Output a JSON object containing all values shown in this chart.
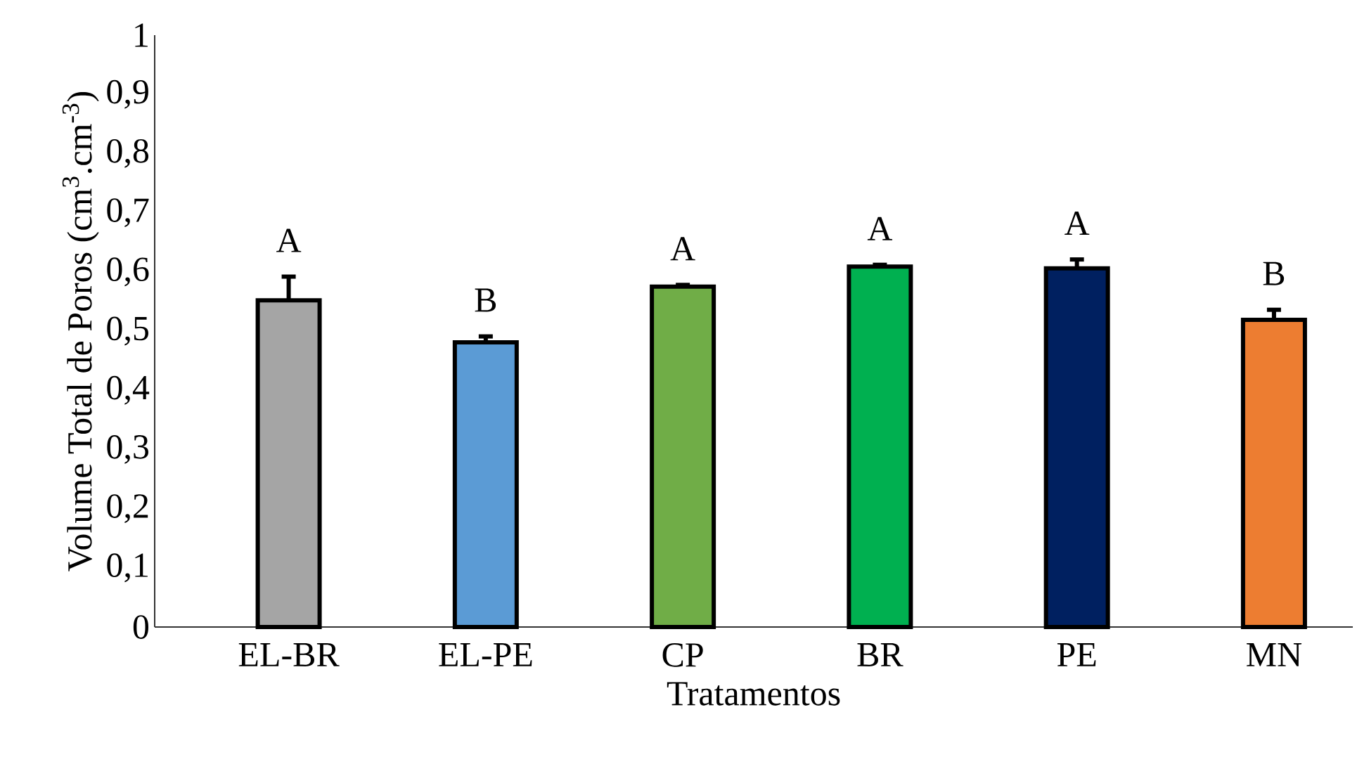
{
  "chart_data": {
    "type": "bar",
    "xlabel": "Tratamentos",
    "ylabel": "Volume Total de Poros (cm$^{3}$.cm$^{-3}$)",
    "categories": [
      "EL-BR",
      "EL-PE",
      "CP",
      "BR",
      "PE",
      "MN"
    ],
    "values": [
      0.552,
      0.481,
      0.575,
      0.609,
      0.606,
      0.519
    ],
    "errors": [
      0.04,
      0.01,
      0.003,
      0.003,
      0.015,
      0.017
    ],
    "colors": [
      "#a5a5a5",
      "#5b9bd5",
      "#70ad47",
      "#00b050",
      "#002060",
      "#ed7d31"
    ],
    "ylim": [
      0,
      1
    ],
    "yticks": [
      {
        "value": 0,
        "label": "0"
      },
      {
        "value": 0.1,
        "label": "0,1"
      },
      {
        "value": 0.2,
        "label": "0,2"
      },
      {
        "value": 0.3,
        "label": "0,3"
      },
      {
        "value": 0.4,
        "label": "0,4"
      },
      {
        "value": 0.5,
        "label": "0,5"
      },
      {
        "value": 0.6,
        "label": "0,6"
      },
      {
        "value": 0.7,
        "label": "0,7"
      },
      {
        "value": 0.8,
        "label": "0,8"
      },
      {
        "value": 0.9,
        "label": "0,9"
      },
      {
        "value": 1,
        "label": "1"
      }
    ],
    "annotations": [
      "A",
      "B",
      "A",
      "A",
      "A",
      "B"
    ],
    "grid": false
  }
}
